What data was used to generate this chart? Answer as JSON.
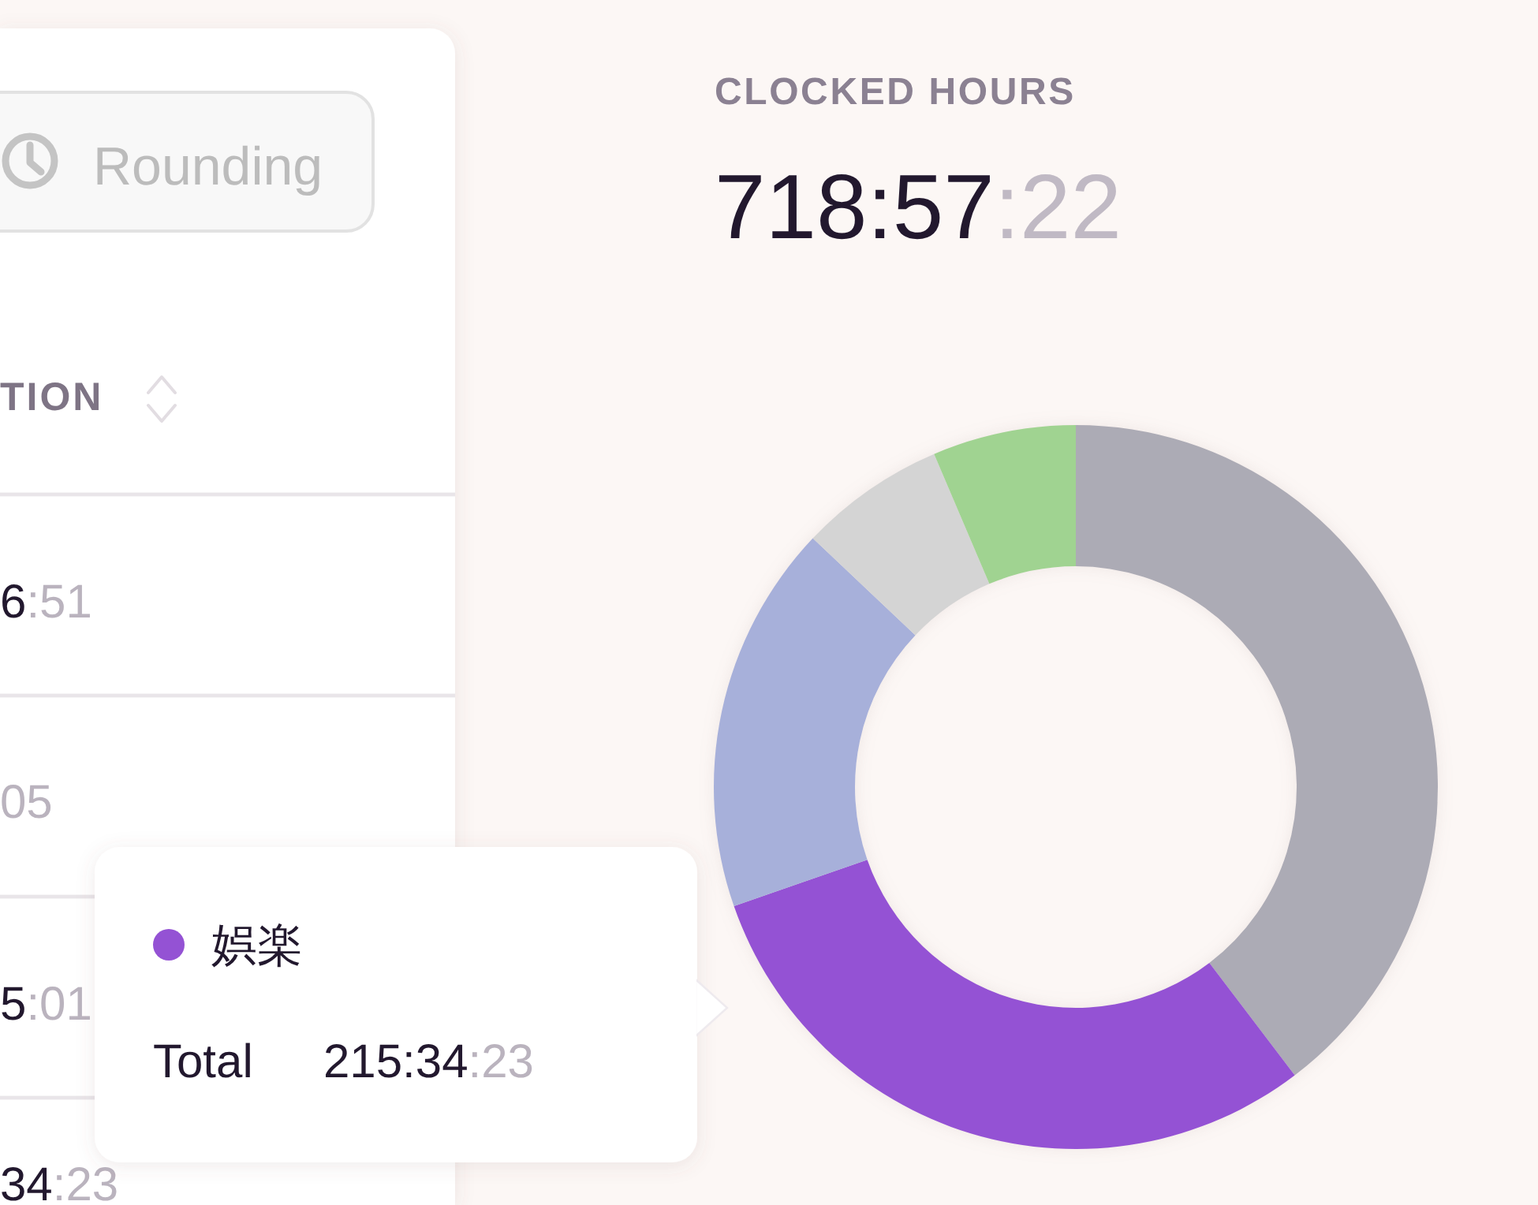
{
  "chart_data": {
    "type": "donut",
    "title": "CLOCKED HOURS",
    "subtitle": "718:57:22",
    "categories": [
      null,
      "娯楽",
      null,
      null,
      null
    ],
    "values": [
      285,
      215.573,
      125,
      47,
      46
    ],
    "colors": [
      "#acabb5",
      "#9452d4",
      "#a7b0da",
      "#d4d4d4",
      "#a0d391"
    ],
    "value_labels": [
      null,
      "215:34:23",
      null,
      null,
      null
    ],
    "annotations": [
      "Rounding",
      "TION",
      "6:51",
      "05",
      "5:01",
      "34:23",
      "Total"
    ]
  }
}
